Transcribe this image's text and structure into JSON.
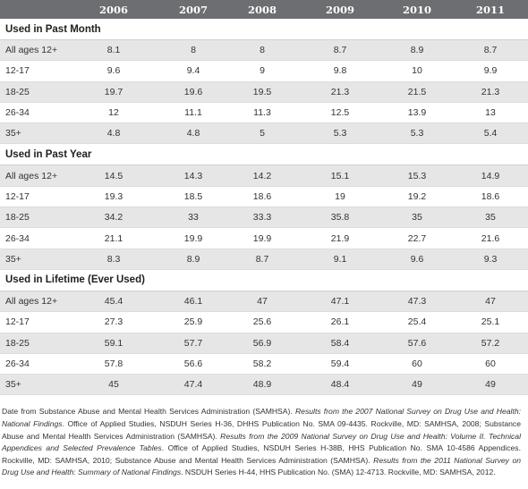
{
  "table": {
    "headers": [
      "",
      "2006",
      "2007",
      "2008",
      "2009",
      "2010",
      "2011"
    ],
    "sections": [
      {
        "title": "Used in Past Month",
        "rows": [
          {
            "label": "All ages 12+",
            "values": [
              "8.1",
              "8",
              "8",
              "8.7",
              "8.9",
              "8.7"
            ]
          },
          {
            "label": "12-17",
            "values": [
              "9.6",
              "9.4",
              "9",
              "9.8",
              "10",
              "9.9"
            ]
          },
          {
            "label": "18-25",
            "values": [
              "19.7",
              "19.6",
              "19.5",
              "21.3",
              "21.5",
              "21.3"
            ]
          },
          {
            "label": "26-34",
            "values": [
              "12",
              "11.1",
              "11.3",
              "12.5",
              "13.9",
              "13"
            ]
          },
          {
            "label": "35+",
            "values": [
              "4.8",
              "4.8",
              "5",
              "5.3",
              "5.3",
              "5.4"
            ]
          }
        ]
      },
      {
        "title": "Used in Past Year",
        "rows": [
          {
            "label": "All ages 12+",
            "values": [
              "14.5",
              "14.3",
              "14.2",
              "15.1",
              "15.3",
              "14.9"
            ]
          },
          {
            "label": "12-17",
            "values": [
              "19.3",
              "18.5",
              "18.6",
              "19",
              "19.2",
              "18.6"
            ]
          },
          {
            "label": "18-25",
            "values": [
              "34.2",
              "33",
              "33.3",
              "35.8",
              "35",
              "35"
            ]
          },
          {
            "label": "26-34",
            "values": [
              "21.1",
              "19.9",
              "19.9",
              "21.9",
              "22.7",
              "21.6"
            ]
          },
          {
            "label": "35+",
            "values": [
              "8.3",
              "8.9",
              "8.7",
              "9.1",
              "9.6",
              "9.3"
            ]
          }
        ]
      },
      {
        "title": "Used in Lifetime (Ever Used)",
        "rows": [
          {
            "label": "All ages 12+",
            "values": [
              "45.4",
              "46.1",
              "47",
              "47.1",
              "47.3",
              "47"
            ]
          },
          {
            "label": "12-17",
            "values": [
              "27.3",
              "25.9",
              "25.6",
              "26.1",
              "25.4",
              "25.1"
            ]
          },
          {
            "label": "18-25",
            "values": [
              "59.1",
              "57.7",
              "56.9",
              "58.4",
              "57.6",
              "57.2"
            ]
          },
          {
            "label": "26-34",
            "values": [
              "57.8",
              "56.6",
              "58.2",
              "59.4",
              "60",
              "60"
            ]
          },
          {
            "label": "35+",
            "values": [
              "45",
              "47.4",
              "48.9",
              "48.4",
              "49",
              "49"
            ]
          }
        ]
      }
    ]
  },
  "footnote": {
    "s1": "Date from Substance Abuse and Mental Health Services Administration (SAMHSA). ",
    "s2": "Results from the 2007 National Survey on Drug Use and Health: National Findings",
    "s3": ". Office of Applied Studies, NSDUH Series H-36, DHHS Publication No. SMA 09-4435. Rockville, MD: SAMHSA, 2008; Substance Abuse and Mental Health Services Administration (SAMHSA). ",
    "s4": "Results from the 2009 National Survey on Drug Use and Health: Volume II. Technical Appendices and Selected Prevalence Tables",
    "s5": ". Office of Applied Studies, NSDUH Series H-38B, HHS Publication No. SMA 10-4586 Appendices. Rockville, MD: SAMHSA, 2010; Substance Abuse and Mental Health Services Administration (SAMHSA). ",
    "s6": "Results from the 2011 National Survey on Drug Use and Health: Summary of National Findings",
    "s7": ". NSDUH Series H-44, HHS Publication No. (SMA) 12-4713. Rockville, MD: SAMHSA, 2012."
  }
}
